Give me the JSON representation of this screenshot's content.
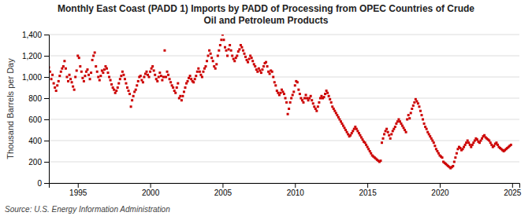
{
  "chart_data": {
    "type": "scatter",
    "title": "Monthly East Coast (PADD 1) Imports by PADD of Processing from OPEC Countries of Crude\nOil and Petroleum Products",
    "ylabel": "Thousand Barrels per Day",
    "source": "Source: U.S. Energy Information Administration",
    "color": "#CC0000",
    "marker": "square",
    "grid": true,
    "xlim": [
      1993.0,
      2025.5
    ],
    "xticks": [
      1995,
      2000,
      2005,
      2010,
      2015,
      2020,
      2025
    ],
    "ylim": [
      0,
      1400
    ],
    "yticks": [
      0,
      200,
      400,
      600,
      800,
      {
        "value": 1000,
        "label": "1,000"
      },
      {
        "value": 1200,
        "label": "1,200"
      },
      {
        "value": 1400,
        "label": "1,400"
      }
    ],
    "x": [
      1993.0,
      1993.083,
      1993.167,
      1993.25,
      1993.333,
      1993.417,
      1993.5,
      1993.583,
      1993.667,
      1993.75,
      1993.833,
      1993.917,
      1994.0,
      1994.083,
      1994.167,
      1994.25,
      1994.333,
      1994.417,
      1994.5,
      1994.583,
      1994.667,
      1994.75,
      1994.833,
      1994.917,
      1995.0,
      1995.083,
      1995.167,
      1995.25,
      1995.333,
      1995.417,
      1995.5,
      1995.583,
      1995.667,
      1995.75,
      1995.833,
      1995.917,
      1996.0,
      1996.083,
      1996.167,
      1996.25,
      1996.333,
      1996.417,
      1996.5,
      1996.583,
      1996.667,
      1996.75,
      1996.833,
      1996.917,
      1997.0,
      1997.083,
      1997.167,
      1997.25,
      1997.333,
      1997.417,
      1997.5,
      1997.583,
      1997.667,
      1997.75,
      1997.833,
      1997.917,
      1998.0,
      1998.083,
      1998.167,
      1998.25,
      1998.333,
      1998.417,
      1998.5,
      1998.583,
      1998.667,
      1998.75,
      1998.833,
      1998.917,
      1999.0,
      1999.083,
      1999.167,
      1999.25,
      1999.333,
      1999.417,
      1999.5,
      1999.583,
      1999.667,
      1999.75,
      1999.833,
      1999.917,
      2000.0,
      2000.083,
      2000.167,
      2000.25,
      2000.333,
      2000.417,
      2000.5,
      2000.583,
      2000.667,
      2000.75,
      2000.833,
      2000.917,
      2001.0,
      2001.083,
      2001.167,
      2001.25,
      2001.333,
      2001.417,
      2001.5,
      2001.583,
      2001.667,
      2001.75,
      2001.833,
      2001.917,
      2002.0,
      2002.083,
      2002.167,
      2002.25,
      2002.333,
      2002.417,
      2002.5,
      2002.583,
      2002.667,
      2002.75,
      2002.833,
      2002.917,
      2003.0,
      2003.083,
      2003.167,
      2003.25,
      2003.333,
      2003.417,
      2003.5,
      2003.583,
      2003.667,
      2003.75,
      2003.833,
      2003.917,
      2004.0,
      2004.083,
      2004.167,
      2004.25,
      2004.333,
      2004.417,
      2004.5,
      2004.583,
      2004.667,
      2004.75,
      2004.833,
      2004.917,
      2005.0,
      2005.083,
      2005.167,
      2005.25,
      2005.333,
      2005.417,
      2005.5,
      2005.583,
      2005.667,
      2005.75,
      2005.833,
      2005.917,
      2006.0,
      2006.083,
      2006.167,
      2006.25,
      2006.333,
      2006.417,
      2006.5,
      2006.583,
      2006.667,
      2006.75,
      2006.833,
      2006.917,
      2007.0,
      2007.083,
      2007.167,
      2007.25,
      2007.333,
      2007.417,
      2007.5,
      2007.583,
      2007.667,
      2007.75,
      2007.833,
      2007.917,
      2008.0,
      2008.083,
      2008.167,
      2008.25,
      2008.333,
      2008.417,
      2008.5,
      2008.583,
      2008.667,
      2008.75,
      2008.833,
      2008.917,
      2009.0,
      2009.083,
      2009.167,
      2009.25,
      2009.333,
      2009.417,
      2009.5,
      2009.583,
      2009.667,
      2009.75,
      2009.833,
      2009.917,
      2010.0,
      2010.083,
      2010.167,
      2010.25,
      2010.333,
      2010.417,
      2010.5,
      2010.583,
      2010.667,
      2010.75,
      2010.833,
      2010.917,
      2011.0,
      2011.083,
      2011.167,
      2011.25,
      2011.333,
      2011.417,
      2011.5,
      2011.583,
      2011.667,
      2011.75,
      2011.833,
      2011.917,
      2012.0,
      2012.083,
      2012.167,
      2012.25,
      2012.333,
      2012.417,
      2012.5,
      2012.583,
      2012.667,
      2012.75,
      2012.833,
      2012.917,
      2013.0,
      2013.083,
      2013.167,
      2013.25,
      2013.333,
      2013.417,
      2013.5,
      2013.583,
      2013.667,
      2013.75,
      2013.833,
      2013.917,
      2014.0,
      2014.083,
      2014.167,
      2014.25,
      2014.333,
      2014.417,
      2014.5,
      2014.583,
      2014.667,
      2014.75,
      2014.833,
      2014.917,
      2015.0,
      2015.083,
      2015.167,
      2015.25,
      2015.333,
      2015.417,
      2015.5,
      2015.583,
      2015.667,
      2015.75,
      2015.833,
      2015.917,
      2016.0,
      2016.083,
      2016.167,
      2016.25,
      2016.333,
      2016.417,
      2016.5,
      2016.583,
      2016.667,
      2016.75,
      2016.833,
      2016.917,
      2017.0,
      2017.083,
      2017.167,
      2017.25,
      2017.333,
      2017.417,
      2017.5,
      2017.583,
      2017.667,
      2017.75,
      2017.833,
      2017.917,
      2018.0,
      2018.083,
      2018.167,
      2018.25,
      2018.333,
      2018.417,
      2018.5,
      2018.583,
      2018.667,
      2018.75,
      2018.833,
      2018.917,
      2019.0,
      2019.083,
      2019.167,
      2019.25,
      2019.333,
      2019.417,
      2019.5,
      2019.583,
      2019.667,
      2019.75,
      2019.833,
      2019.917,
      2020.0,
      2020.083,
      2020.167,
      2020.25,
      2020.333,
      2020.417,
      2020.5,
      2020.583,
      2020.667,
      2020.75,
      2020.833,
      2020.917,
      2021.0,
      2021.083,
      2021.167,
      2021.25,
      2021.333,
      2021.417,
      2021.5,
      2021.583,
      2021.667,
      2021.75,
      2021.833,
      2021.917,
      2022.0,
      2022.083,
      2022.167,
      2022.25,
      2022.333,
      2022.417,
      2022.5,
      2022.583,
      2022.667,
      2022.75,
      2022.833,
      2022.917,
      2023.0,
      2023.083,
      2023.167,
      2023.25,
      2023.333,
      2023.417,
      2023.5,
      2023.583,
      2023.667,
      2023.75,
      2023.833,
      2023.917,
      2024.0,
      2024.083,
      2024.167,
      2024.25,
      2024.333,
      2024.417,
      2024.5,
      2024.583,
      2024.667,
      2024.75,
      2024.833,
      2024.917
    ],
    "values": [
      1090,
      1050,
      980,
      1020,
      940,
      900,
      870,
      920,
      960,
      1010,
      1050,
      1080,
      1100,
      1150,
      1080,
      1000,
      960,
      1020,
      980,
      950,
      910,
      880,
      1000,
      1060,
      1200,
      1180,
      1100,
      1050,
      990,
      960,
      1010,
      1050,
      1070,
      1020,
      980,
      1040,
      1160,
      1200,
      1230,
      1100,
      1050,
      1000,
      970,
      1010,
      1060,
      1040,
      1070,
      1100,
      1080,
      1040,
      1000,
      970,
      930,
      900,
      880,
      850,
      870,
      900,
      940,
      980,
      1010,
      1050,
      1020,
      980,
      940,
      900,
      870,
      840,
      720,
      780,
      820,
      860,
      880,
      920,
      960,
      1000,
      1010,
      970,
      950,
      1000,
      1030,
      1050,
      1020,
      1000,
      1050,
      1080,
      1100,
      1060,
      1020,
      980,
      960,
      1000,
      1040,
      1010,
      970,
      1000,
      1250,
      1000,
      1050,
      1020,
      980,
      950,
      920,
      900,
      870,
      850,
      900,
      940,
      800,
      820,
      780,
      820,
      860,
      900,
      940,
      960,
      990,
      1010,
      980,
      960,
      950,
      980,
      1010,
      1050,
      1080,
      1050,
      1020,
      1000,
      1050,
      1080,
      1100,
      1150,
      1200,
      1250,
      1220,
      1180,
      1150,
      1100,
      1080,
      1120,
      1200,
      1250,
      1300,
      1350,
      1400,
      1350,
      1280,
      1250,
      1200,
      1260,
      1300,
      1250,
      1200,
      1170,
      1150,
      1180,
      1200,
      1240,
      1260,
      1300,
      1280,
      1250,
      1220,
      1190,
      1160,
      1140,
      1170,
      1200,
      1180,
      1150,
      1120,
      1100,
      1070,
      1050,
      1080,
      1060,
      1040,
      1070,
      1100,
      1130,
      1140,
      1100,
      1050,
      1030,
      1060,
      1050,
      1000,
      950,
      920,
      870,
      850,
      830,
      850,
      880,
      860,
      840,
      800,
      760,
      650,
      700,
      760,
      800,
      830,
      860,
      920,
      960,
      950,
      880,
      840,
      800,
      780,
      760,
      800,
      830,
      800,
      780,
      800,
      820,
      780,
      750,
      720,
      700,
      680,
      720,
      760,
      800,
      820,
      800,
      810,
      840,
      870,
      850,
      820,
      790,
      760,
      720,
      700,
      680,
      660,
      640,
      620,
      600,
      580,
      560,
      540,
      520,
      500,
      480,
      460,
      440,
      450,
      470,
      490,
      510,
      530,
      510,
      490,
      470,
      450,
      430,
      410,
      390,
      380,
      360,
      340,
      320,
      300,
      280,
      260,
      250,
      240,
      230,
      220,
      210,
      200,
      210,
      380,
      420,
      460,
      490,
      510,
      480,
      450,
      420,
      460,
      490,
      510,
      530,
      560,
      580,
      600,
      580,
      560,
      540,
      520,
      500,
      480,
      600,
      640,
      610,
      660,
      700,
      730,
      760,
      790,
      770,
      750,
      720,
      680,
      640,
      600,
      560,
      530,
      510,
      480,
      460,
      440,
      420,
      400,
      380,
      350,
      320,
      300,
      280,
      260,
      250,
      240,
      200,
      190,
      180,
      170,
      160,
      150,
      140,
      150,
      160,
      200,
      240,
      280,
      320,
      340,
      330,
      310,
      320,
      340,
      360,
      380,
      400,
      380,
      360,
      340,
      360,
      380,
      400,
      420,
      410,
      390,
      380,
      400,
      420,
      440,
      450,
      430,
      420,
      410,
      400,
      380,
      360,
      340,
      350,
      370,
      380,
      360,
      340,
      330,
      320,
      310,
      300,
      310,
      320,
      330,
      340,
      350,
      360
    ]
  }
}
